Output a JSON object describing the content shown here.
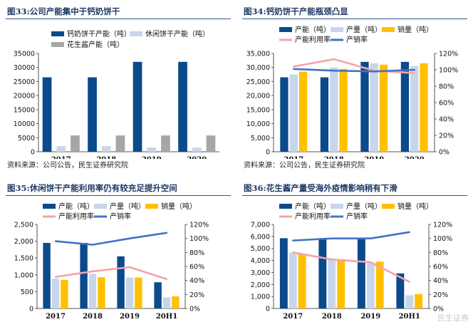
{
  "colors": {
    "navy": "#0b4a8b",
    "light": "#c7d6ea",
    "gold": "#ffc000",
    "gray": "#a6a6a6",
    "pink": "#f4a3aa",
    "blue": "#4472c4",
    "title": "#1f3864"
  },
  "source": "资料来源：公司公告，民生证券研究院",
  "watermark": "民生证券",
  "chart_data": [
    {
      "id": "c33",
      "title": "图33:公司产能集中于钙奶饼干",
      "type": "bar",
      "categories": [
        "2017",
        "2018",
        "2019",
        "2020"
      ],
      "series": [
        {
          "name": "钙奶饼干产能（吨）",
          "color": "navy",
          "values": [
            26500,
            26500,
            32000,
            32000
          ]
        },
        {
          "name": "休闲饼干产能（吨）",
          "color": "light",
          "values": [
            2000,
            2000,
            1500,
            1500
          ]
        },
        {
          "name": "花生酱产能（吨）",
          "color": "gray",
          "values": [
            5800,
            5800,
            5800,
            5800
          ]
        }
      ],
      "ylim": [
        0,
        35000
      ],
      "yticks": [
        0,
        5000,
        10000,
        15000,
        20000,
        25000,
        30000,
        35000
      ],
      "ytick_labels": [
        "0",
        "5000",
        "10000",
        "15000",
        "20000",
        "25000",
        "30000",
        "35000"
      ],
      "grid": false,
      "legend": "top"
    },
    {
      "id": "c34",
      "title": "图34:钙奶饼干产能瓶颈凸显",
      "type": "bar",
      "categories": [
        "2017",
        "2018",
        "2019",
        "2020"
      ],
      "series": [
        {
          "name": "产能（吨）",
          "color": "navy",
          "values": [
            26500,
            26500,
            32000,
            32000
          ]
        },
        {
          "name": "产量（吨）",
          "color": "light",
          "values": [
            27500,
            30000,
            31500,
            30500
          ]
        },
        {
          "name": "销量（吨）",
          "color": "gold",
          "values": [
            28500,
            29500,
            31000,
            31500
          ]
        }
      ],
      "lines": [
        {
          "name": "产能利用率",
          "color": "pink",
          "values": [
            1.04,
            1.13,
            0.99,
            0.96
          ]
        },
        {
          "name": "产销率",
          "color": "blue",
          "values": [
            1.01,
            0.99,
            0.98,
            1.0
          ]
        }
      ],
      "ylim": [
        0,
        35000
      ],
      "yticks": [
        0,
        5000,
        10000,
        15000,
        20000,
        25000,
        30000,
        35000
      ],
      "ytick_labels": [
        "0",
        "5,000",
        "10,000",
        "15,000",
        "20,000",
        "25,000",
        "30,000",
        "35,000"
      ],
      "y2lim": [
        0,
        1.2
      ],
      "y2ticks": [
        0,
        0.2,
        0.4,
        0.6,
        0.8,
        1.0,
        1.2
      ],
      "y2tick_labels": [
        "0%",
        "20%",
        "40%",
        "60%",
        "80%",
        "100%",
        "120%"
      ],
      "grid": false,
      "legend": "top"
    },
    {
      "id": "c35",
      "title": "图35:休闲饼干产能利用率仍有较充足提升空间",
      "type": "bar",
      "categories": [
        "2017",
        "2018",
        "2019",
        "20H1"
      ],
      "series": [
        {
          "name": "产能（吨）",
          "color": "navy",
          "values": [
            1950,
            1950,
            1550,
            780
          ]
        },
        {
          "name": "产量（吨）",
          "color": "light",
          "values": [
            890,
            1030,
            920,
            330
          ]
        },
        {
          "name": "销量（吨）",
          "color": "gold",
          "values": [
            850,
            930,
            920,
            360
          ]
        }
      ],
      "lines": [
        {
          "name": "产能利用率",
          "color": "pink",
          "values": [
            0.45,
            0.53,
            0.59,
            0.42
          ]
        },
        {
          "name": "产销率",
          "color": "blue",
          "values": [
            0.96,
            0.91,
            1.0,
            1.08
          ]
        }
      ],
      "ylim": [
        0,
        2500
      ],
      "yticks": [
        0,
        500,
        1000,
        1500,
        2000,
        2500
      ],
      "ytick_labels": [
        "0",
        "500",
        "1,000",
        "1,500",
        "2,000",
        "2,500"
      ],
      "y2lim": [
        0,
        1.2
      ],
      "y2ticks": [
        0,
        0.2,
        0.4,
        0.6,
        0.8,
        1.0,
        1.2
      ],
      "y2tick_labels": [
        "0%",
        "20%",
        "40%",
        "60%",
        "80%",
        "100%",
        "120%"
      ],
      "grid": false,
      "legend": "top"
    },
    {
      "id": "c36",
      "title": "图36:花生酱产量受海外疫情影响稍有下滑",
      "type": "bar",
      "categories": [
        "2017",
        "2018",
        "2019",
        "20H1"
      ],
      "series": [
        {
          "name": "产能（吨）",
          "color": "navy",
          "values": [
            5850,
            5850,
            5850,
            2920
          ]
        },
        {
          "name": "产量（吨）",
          "color": "light",
          "values": [
            4650,
            4100,
            3850,
            1100
          ]
        },
        {
          "name": "销量（吨）",
          "color": "gold",
          "values": [
            4550,
            4100,
            3900,
            1200
          ]
        }
      ],
      "lines": [
        {
          "name": "产能利用率",
          "color": "pink",
          "values": [
            0.8,
            0.7,
            0.66,
            0.38
          ]
        },
        {
          "name": "产销率",
          "color": "blue",
          "values": [
            0.97,
            1.0,
            1.0,
            1.09
          ]
        }
      ],
      "ylim": [
        0,
        7000
      ],
      "yticks": [
        0,
        1000,
        2000,
        3000,
        4000,
        5000,
        6000,
        7000
      ],
      "ytick_labels": [
        "0",
        "1,000",
        "2,000",
        "3,000",
        "4,000",
        "5,000",
        "6,000",
        "7,000"
      ],
      "y2lim": [
        0,
        1.2
      ],
      "y2ticks": [
        0,
        0.2,
        0.4,
        0.6,
        0.8,
        1.0,
        1.2
      ],
      "y2tick_labels": [
        "0%",
        "20%",
        "40%",
        "60%",
        "80%",
        "100%",
        "120%"
      ],
      "grid": false,
      "legend": "top"
    }
  ]
}
